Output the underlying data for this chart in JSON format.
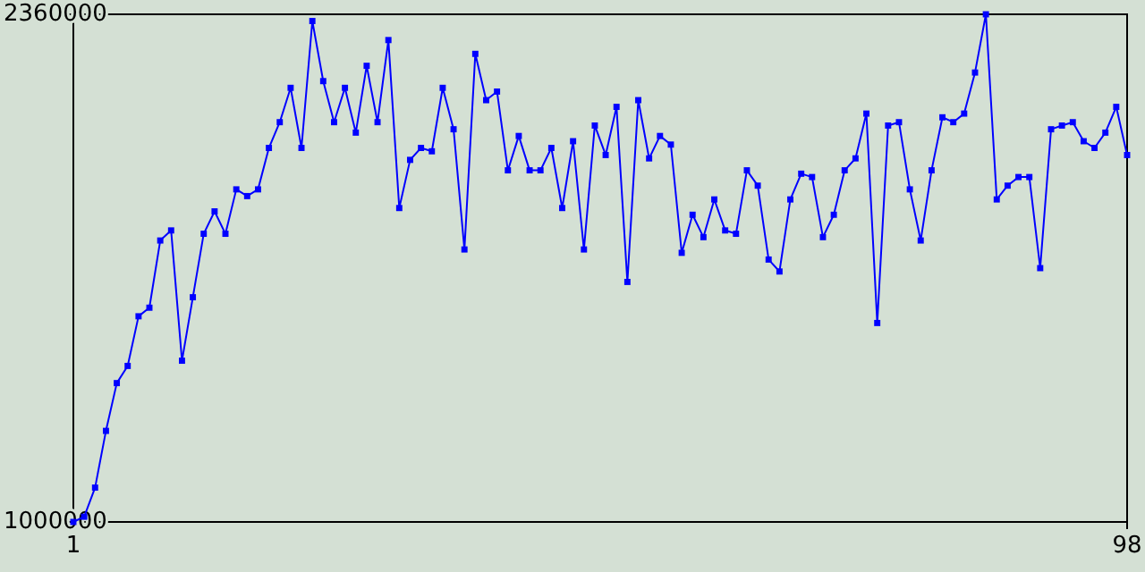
{
  "chart_data": {
    "type": "line",
    "marker": "square",
    "line_style": "solid",
    "x": [
      1,
      2,
      3,
      4,
      5,
      6,
      7,
      8,
      9,
      10,
      11,
      12,
      13,
      14,
      15,
      16,
      17,
      18,
      19,
      20,
      21,
      22,
      23,
      24,
      25,
      26,
      27,
      28,
      29,
      30,
      31,
      32,
      33,
      34,
      35,
      36,
      37,
      38,
      39,
      40,
      41,
      42,
      43,
      44,
      45,
      46,
      47,
      48,
      49,
      50,
      51,
      52,
      53,
      54,
      55,
      56,
      57,
      58,
      59,
      60,
      61,
      62,
      63,
      64,
      65,
      66,
      67,
      68,
      69,
      70,
      71,
      72,
      73,
      74,
      75,
      76,
      77,
      78,
      79,
      80,
      81,
      82,
      83,
      84,
      85,
      86,
      87,
      88,
      89,
      90,
      91,
      92,
      93,
      94,
      95,
      96,
      97,
      98
    ],
    "series": [
      {
        "color": "#0000ff",
        "values": [
          1000000,
          1014000,
          1092000,
          1244000,
          1372000,
          1418000,
          1551000,
          1574000,
          1754000,
          1781000,
          1432000,
          1602000,
          1772000,
          1832000,
          1772000,
          1891000,
          1873000,
          1891000,
          2002000,
          2071000,
          2163000,
          2002000,
          2342000,
          2181000,
          2071000,
          2163000,
          2043000,
          2222000,
          2071000,
          2291000,
          1841000,
          1970000,
          2002000,
          1993000,
          2163000,
          2052000,
          1730000,
          2254000,
          2130000,
          2153000,
          1942000,
          2034000,
          1942000,
          1942000,
          2002000,
          1841000,
          2020000,
          1730000,
          2062000,
          1983000,
          2112000,
          1643000,
          2130000,
          1974000,
          2034000,
          2011000,
          1721000,
          1823000,
          1763000,
          1864000,
          1781000,
          1772000,
          1942000,
          1901000,
          1703000,
          1671000,
          1864000,
          1933000,
          1924000,
          1763000,
          1823000,
          1942000,
          1974000,
          2094000,
          1533000,
          2062000,
          2071000,
          1891000,
          1754000,
          1942000,
          2084000,
          2071000,
          2094000,
          2204000,
          2360000,
          1864000,
          1901000,
          1924000,
          1924000,
          1680000,
          2052000,
          2062000,
          2071000,
          2020000,
          2002000,
          2043000,
          2112000,
          1983000
        ]
      }
    ],
    "xlim": [
      1,
      98
    ],
    "xticks": [
      1,
      98
    ],
    "ylim": [
      1000000,
      2360000
    ],
    "yticks": [
      1000000,
      2360000
    ]
  }
}
